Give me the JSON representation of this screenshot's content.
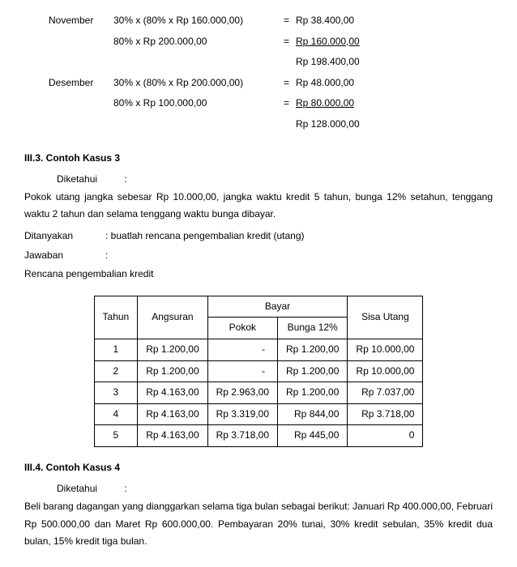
{
  "calc": {
    "rows": [
      {
        "month": "November",
        "formula": "30% x (80% x Rp 160.000,00)",
        "result": "Rp   38.400,00",
        "underline": false
      },
      {
        "month": "",
        "formula": "80% x Rp 200.000,00",
        "result": "Rp 160.000,00",
        "underline": true
      },
      {
        "month": "",
        "formula": "",
        "result": "",
        "sum": "Rp 198.400,00"
      },
      {
        "month": "Desember",
        "formula": "30% x (80% x Rp 200.000,00)",
        "result": "Rp 48.000,00",
        "underline": false
      },
      {
        "month": "",
        "formula": "80% x Rp 100.000,00",
        "result": "Rp 80.000,00",
        "underline": true
      },
      {
        "month": "",
        "formula": "",
        "result": "",
        "sum": "Rp 128.000,00"
      }
    ]
  },
  "section3": {
    "title": "III.3.  Contoh Kasus 3",
    "known_label": "Diketahui",
    "known_colon": ":",
    "desc": "Pokok utang jangka sebesar Rp 10.000,00, jangka waktu kredit 5 tahun, bunga 12% setahun, tenggang waktu 2 tahun dan selama tenggang waktu bunga dibayar.",
    "asked_label": "Ditanyakan",
    "asked_text": ": buatlah rencana pengembalian kredit (utang)",
    "answer_label": "Jawaban",
    "answer_colon": ":",
    "plan": "Rencana pengembalian kredit"
  },
  "table": {
    "head": {
      "tahun": "Tahun",
      "angsuran": "Angsuran",
      "bayar": "Bayar",
      "sisa": "Sisa Utang",
      "pokok": "Pokok",
      "bunga": "Bunga 12%"
    },
    "rows": [
      {
        "tahun": "1",
        "angsuran": "Rp 1.200,00",
        "pokok": "-",
        "bunga": "Rp 1.200,00",
        "sisa": "Rp 10.000,00"
      },
      {
        "tahun": "2",
        "angsuran": "Rp 1.200,00",
        "pokok": "-",
        "bunga": "Rp 1.200,00",
        "sisa": "Rp 10.000,00"
      },
      {
        "tahun": "3",
        "angsuran": "Rp 4.163,00",
        "pokok": "Rp 2.963,00",
        "bunga": "Rp 1.200,00",
        "sisa": "Rp 7.037,00"
      },
      {
        "tahun": "4",
        "angsuran": "Rp 4.163,00",
        "pokok": "Rp 3.319,00",
        "bunga": "Rp 844,00",
        "sisa": "Rp 3.718,00"
      },
      {
        "tahun": "5",
        "angsuran": "Rp 4.163,00",
        "pokok": "Rp 3.718,00",
        "bunga": "Rp 445,00",
        "sisa": "0"
      }
    ]
  },
  "section4": {
    "title": "III.4.  Contoh Kasus 4",
    "known_label": "Diketahui",
    "known_colon": ":",
    "desc": "Beli barang dagangan yang dianggarkan selama tiga bulan sebagai berikut: Januari Rp 400.000,00, Februari Rp 500.000,00 dan Maret Rp 600.000,00. Pembayaran 20% tunai, 30% kredit sebulan, 35% kredit dua bulan, 15% kredit tiga bulan."
  }
}
